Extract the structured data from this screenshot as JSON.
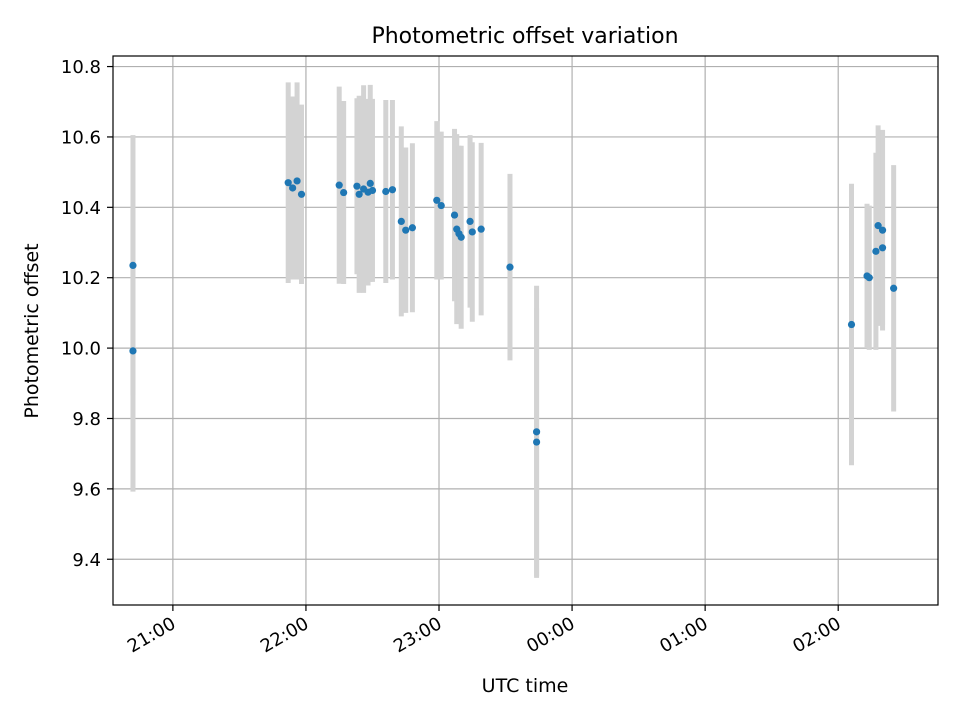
{
  "chart_data": {
    "type": "scatter",
    "title": "Photometric offset variation",
    "xlabel": "UTC time",
    "ylabel": "Photometric offset",
    "x_is_time": true,
    "xlim": [
      "20:33",
      "02:45"
    ],
    "ylim": [
      9.27,
      10.83
    ],
    "yticks": [
      9.4,
      9.6,
      9.8,
      10.0,
      10.2,
      10.4,
      10.6,
      10.8
    ],
    "ytick_labels": [
      "9.4",
      "9.6",
      "9.8",
      "10.0",
      "10.2",
      "10.4",
      "10.6",
      "10.8"
    ],
    "xticks": [
      "21:00",
      "22:00",
      "23:00",
      "00:00",
      "01:00",
      "02:00"
    ],
    "grid": true,
    "colors": {
      "marker": "#1f77b4",
      "errorbar": "#d3d3d3",
      "grid": "#b0b0b0"
    },
    "points": [
      {
        "x": "20:42",
        "y": 10.235,
        "err": 0.37
      },
      {
        "x": "20:42",
        "y": 9.992,
        "err": 0.4
      },
      {
        "x": "21:52",
        "y": 10.47,
        "err": 0.285
      },
      {
        "x": "21:54",
        "y": 10.455,
        "err": 0.26
      },
      {
        "x": "21:56",
        "y": 10.475,
        "err": 0.28
      },
      {
        "x": "21:58",
        "y": 10.437,
        "err": 0.255
      },
      {
        "x": "22:15",
        "y": 10.463,
        "err": 0.28
      },
      {
        "x": "22:17",
        "y": 10.442,
        "err": 0.26
      },
      {
        "x": "22:23",
        "y": 10.46,
        "err": 0.25
      },
      {
        "x": "22:24",
        "y": 10.437,
        "err": 0.28
      },
      {
        "x": "22:26",
        "y": 10.452,
        "err": 0.295
      },
      {
        "x": "22:28",
        "y": 10.443,
        "err": 0.265
      },
      {
        "x": "22:29",
        "y": 10.468,
        "err": 0.28
      },
      {
        "x": "22:30",
        "y": 10.448,
        "err": 0.26
      },
      {
        "x": "22:36",
        "y": 10.445,
        "err": 0.26
      },
      {
        "x": "22:39",
        "y": 10.45,
        "err": 0.255
      },
      {
        "x": "22:43",
        "y": 10.36,
        "err": 0.27
      },
      {
        "x": "22:45",
        "y": 10.335,
        "err": 0.235
      },
      {
        "x": "22:48",
        "y": 10.342,
        "err": 0.24
      },
      {
        "x": "22:59",
        "y": 10.42,
        "err": 0.225
      },
      {
        "x": "23:01",
        "y": 10.405,
        "err": 0.21
      },
      {
        "x": "23:07",
        "y": 10.378,
        "err": 0.245
      },
      {
        "x": "23:08",
        "y": 10.338,
        "err": 0.27
      },
      {
        "x": "23:09",
        "y": 10.325,
        "err": 0.25
      },
      {
        "x": "23:10",
        "y": 10.315,
        "err": 0.26
      },
      {
        "x": "23:14",
        "y": 10.36,
        "err": 0.245
      },
      {
        "x": "23:15",
        "y": 10.33,
        "err": 0.255
      },
      {
        "x": "23:19",
        "y": 10.338,
        "err": 0.245
      },
      {
        "x": "23:32",
        "y": 10.23,
        "err": 0.265
      },
      {
        "x": "23:44",
        "y": 9.762,
        "err": 0.415
      },
      {
        "x": "23:44",
        "y": 9.733,
        "err": 0.38
      },
      {
        "x": "02:06",
        "y": 10.067,
        "err": 0.4
      },
      {
        "x": "02:13",
        "y": 10.205,
        "err": 0.205
      },
      {
        "x": "02:14",
        "y": 10.2,
        "err": 0.205
      },
      {
        "x": "02:17",
        "y": 10.275,
        "err": 0.28
      },
      {
        "x": "02:18",
        "y": 10.348,
        "err": 0.285
      },
      {
        "x": "02:20",
        "y": 10.285,
        "err": 0.22
      },
      {
        "x": "02:20",
        "y": 10.335,
        "err": 0.285
      },
      {
        "x": "02:25",
        "y": 10.17,
        "err": 0.35
      }
    ]
  }
}
